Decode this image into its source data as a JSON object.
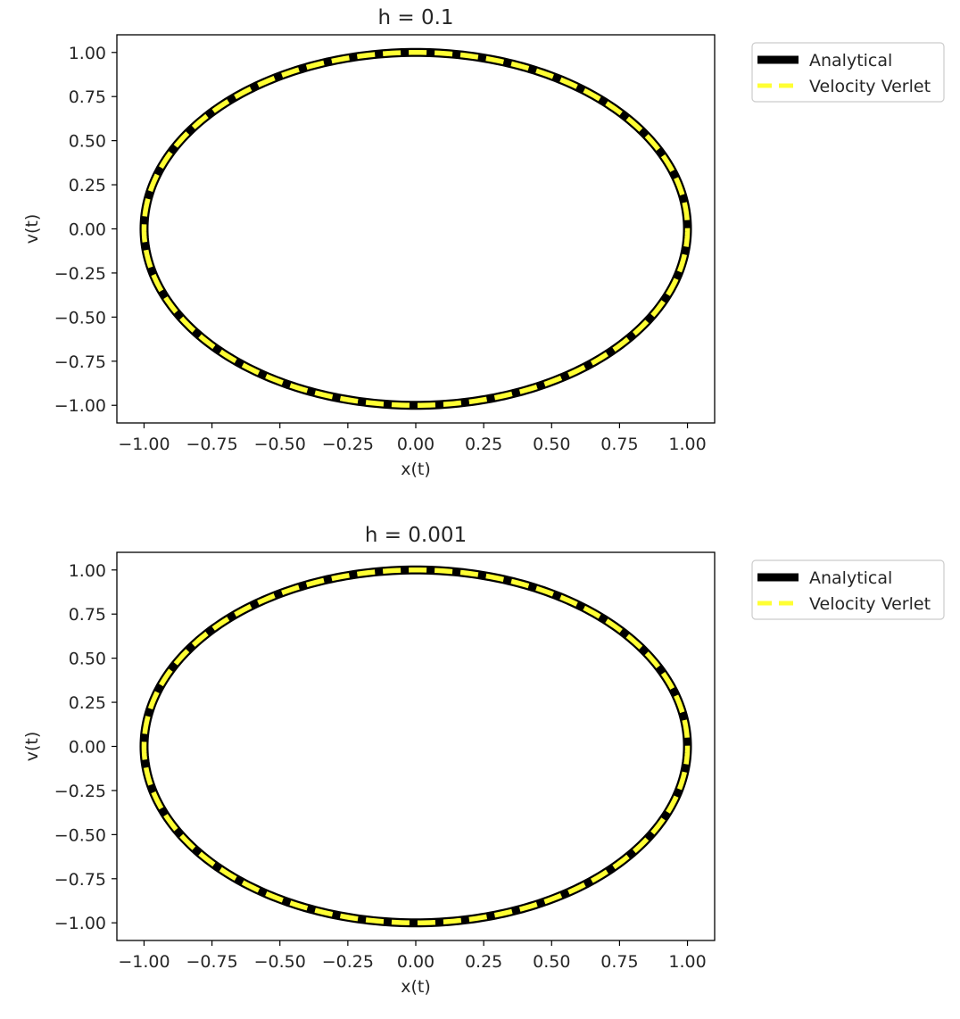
{
  "chart_data": [
    {
      "type": "line",
      "title": "h = 0.1",
      "xlabel": "x(t)",
      "ylabel": "v(t)",
      "xlim": [
        -1.1,
        1.1
      ],
      "ylim": [
        -1.1,
        1.1
      ],
      "xticks": [
        -1.0,
        -0.75,
        -0.5,
        -0.25,
        0.0,
        0.25,
        0.5,
        0.75,
        1.0
      ],
      "xtick_labels": [
        "−1.00",
        "−0.75",
        "−0.50",
        "−0.25",
        "0.00",
        "0.25",
        "0.50",
        "0.75",
        "1.00"
      ],
      "yticks": [
        1.0,
        0.75,
        0.5,
        0.25,
        0.0,
        -0.25,
        -0.5,
        -0.75,
        -1.0
      ],
      "ytick_labels": [
        "1.00",
        "0.75",
        "0.50",
        "0.25",
        "0.00",
        "−0.25",
        "−0.50",
        "−0.75",
        "−1.00"
      ],
      "grid": false,
      "legend_placement": "outside-upper-right",
      "series": [
        {
          "name": "Analytical",
          "color": "#000000",
          "style": "solid",
          "curve": "unit circle x = cos t, v = -sin t",
          "radius": 1.0
        },
        {
          "name": "Velocity Verlet",
          "color": "#ffff33",
          "style": "dashed",
          "curve": "unit circle x = cos t, v = -sin t",
          "radius": 1.0
        }
      ]
    },
    {
      "type": "line",
      "title": "h = 0.001",
      "xlabel": "x(t)",
      "ylabel": "v(t)",
      "xlim": [
        -1.1,
        1.1
      ],
      "ylim": [
        -1.1,
        1.1
      ],
      "xticks": [
        -1.0,
        -0.75,
        -0.5,
        -0.25,
        0.0,
        0.25,
        0.5,
        0.75,
        1.0
      ],
      "xtick_labels": [
        "−1.00",
        "−0.75",
        "−0.50",
        "−0.25",
        "0.00",
        "0.25",
        "0.50",
        "0.75",
        "1.00"
      ],
      "yticks": [
        1.0,
        0.75,
        0.5,
        0.25,
        0.0,
        -0.25,
        -0.5,
        -0.75,
        -1.0
      ],
      "ytick_labels": [
        "1.00",
        "0.75",
        "0.50",
        "0.25",
        "0.00",
        "−0.25",
        "−0.50",
        "−0.75",
        "−1.00"
      ],
      "grid": false,
      "legend_placement": "outside-upper-right",
      "series": [
        {
          "name": "Analytical",
          "color": "#000000",
          "style": "solid",
          "curve": "unit circle x = cos t, v = -sin t",
          "radius": 1.0
        },
        {
          "name": "Velocity Verlet",
          "color": "#ffff33",
          "style": "dashed",
          "curve": "unit circle x = cos t, v = -sin t",
          "radius": 1.0
        }
      ]
    }
  ]
}
